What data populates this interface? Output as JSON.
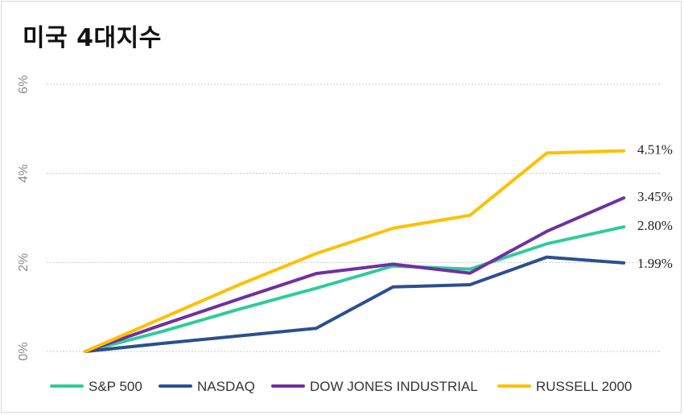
{
  "title": "미국 4대지수",
  "chart_data": {
    "type": "line",
    "title": "미국 4대지수",
    "x": [
      0,
      1,
      2,
      3,
      4,
      5,
      6,
      7
    ],
    "ylim": [
      0,
      6
    ],
    "yticks": [
      0,
      2,
      4,
      6
    ],
    "ytick_labels": [
      "0%",
      "2%",
      "4%",
      "6%"
    ],
    "grid": true,
    "legend_position": "bottom",
    "series": [
      {
        "name": "S&P 500",
        "color": "#2ecc9a",
        "values": [
          0,
          0.45,
          0.95,
          1.42,
          1.92,
          1.85,
          2.42,
          2.8
        ],
        "end_label": "2.80%"
      },
      {
        "name": "NASDAQ",
        "color": "#2c4f8f",
        "values": [
          0,
          0.18,
          0.35,
          0.52,
          1.45,
          1.5,
          2.12,
          1.99
        ],
        "end_label": "1.99%"
      },
      {
        "name": "DOW JONES INDUSTRIAL",
        "color": "#7030a0",
        "values": [
          0,
          0.6,
          1.18,
          1.75,
          1.96,
          1.76,
          2.7,
          3.45
        ],
        "end_label": "3.45%"
      },
      {
        "name": "RUSSELL 2000",
        "color": "#ffc000",
        "values": [
          0,
          0.75,
          1.5,
          2.2,
          2.77,
          3.06,
          4.46,
          4.51
        ],
        "end_label": "4.51%"
      }
    ]
  }
}
